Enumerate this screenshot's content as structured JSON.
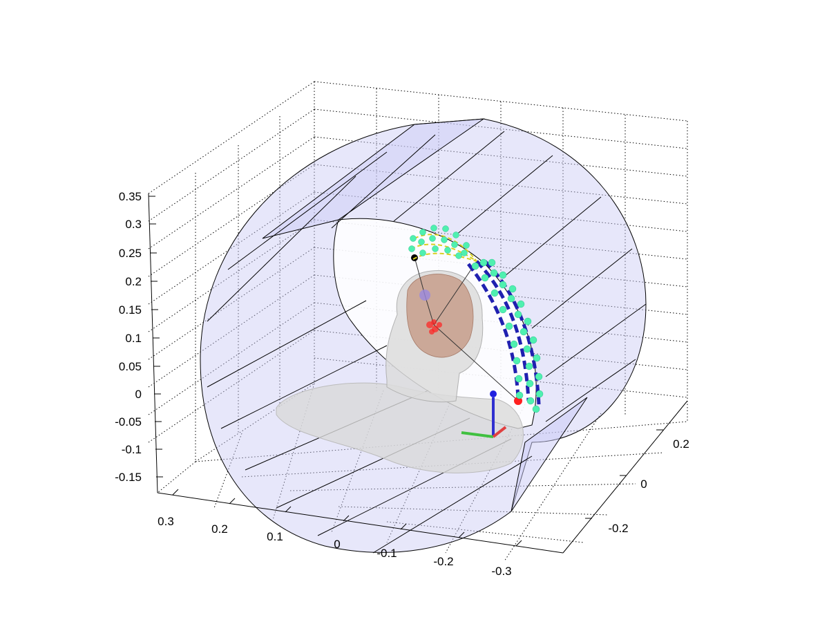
{
  "axes": {
    "z_ticks": [
      "0.35",
      "0.3",
      "0.25",
      "0.2",
      "0.15",
      "0.1",
      "0.05",
      "0",
      "-0.05",
      "-0.1",
      "-0.15"
    ],
    "x_ticks": [
      "0.3",
      "0.2",
      "0.1",
      "0",
      "-0.1",
      "-0.2",
      "-0.3"
    ],
    "y_ticks": [
      "0.2",
      "0",
      "-0.2"
    ],
    "grid": true
  },
  "colors": {
    "cylinder_fill": "#c9c9f5",
    "head": "#d9d9d9",
    "brain": "#c69a86",
    "electrode_path": "#2020b0",
    "electrode_dots": "#4ff0b0",
    "marker_red": "#ff2020",
    "marker_purple": "#9a88e0",
    "axis_x": "#e04040",
    "axis_y": "#40c040",
    "axis_z": "#3030d0"
  }
}
